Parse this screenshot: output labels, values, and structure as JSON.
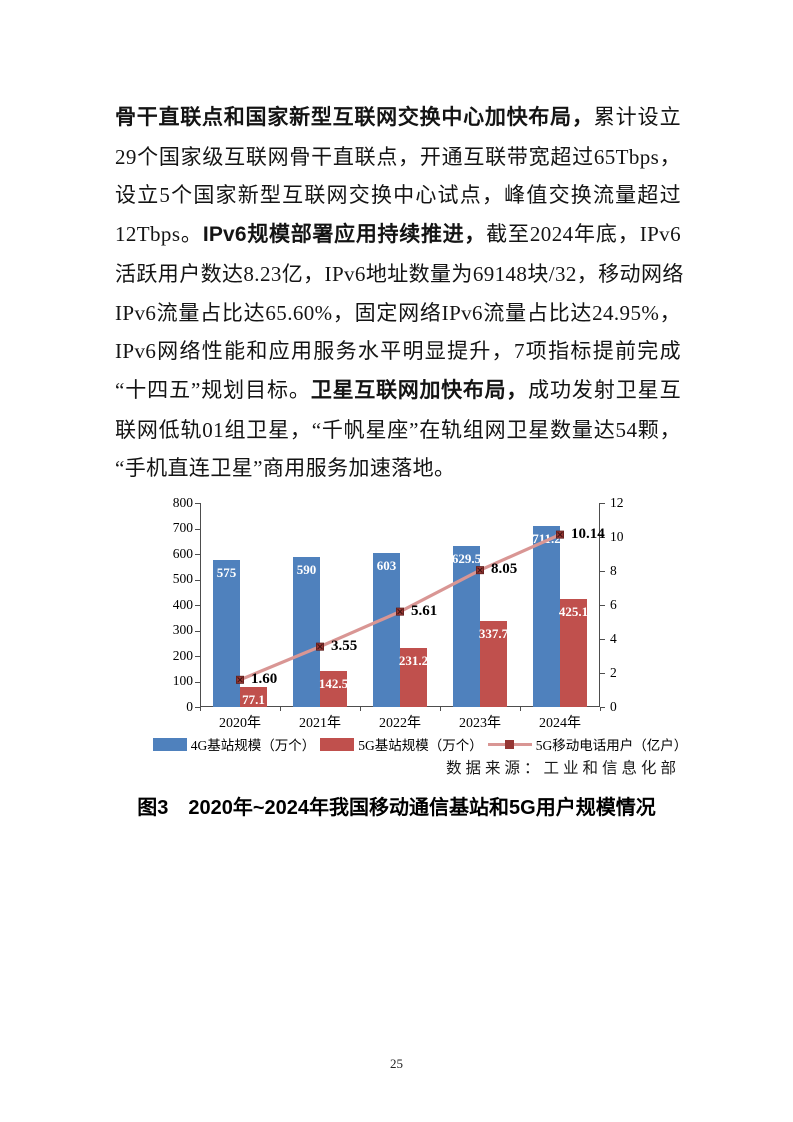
{
  "page": {
    "number": "25"
  },
  "paragraph": {
    "lines": [
      {
        "justify": true,
        "segments": [
          {
            "text": "骨干直联点和国家新型互联网交换中心加快布局，",
            "bold": true
          },
          {
            "text": "累计设立",
            "bold": false
          }
        ]
      },
      {
        "justify": true,
        "segments": [
          {
            "text": "29个国家级互联网骨干直联点，开通互联带宽超过65Tbps，",
            "bold": false
          }
        ]
      },
      {
        "justify": true,
        "segments": [
          {
            "text": "设立5个国家新型互联网交换中心试点，峰值交换流量超过",
            "bold": false
          }
        ]
      },
      {
        "justify": true,
        "segments": [
          {
            "text": "12Tbps。",
            "bold": false
          },
          {
            "text": "IPv6规模部署应用持续推进，",
            "bold": true
          },
          {
            "text": "截至2024年底，IPv6",
            "bold": false
          }
        ]
      },
      {
        "justify": true,
        "segments": [
          {
            "text": "活跃用户数达8.23亿，IPv6地址数量为69148块/32，移动网络",
            "bold": false
          }
        ]
      },
      {
        "justify": true,
        "segments": [
          {
            "text": "IPv6流量占比达65.60%，固定网络IPv6流量占比达24.95%，",
            "bold": false
          }
        ]
      },
      {
        "justify": true,
        "segments": [
          {
            "text": "IPv6网络性能和应用服务水平明显提升，7项指标提前完成",
            "bold": false
          }
        ]
      },
      {
        "justify": true,
        "segments": [
          {
            "text": "“十四五”规划目标。",
            "bold": false
          },
          {
            "text": "卫星互联网加快布局，",
            "bold": true
          },
          {
            "text": "成功发射卫星互",
            "bold": false
          }
        ]
      },
      {
        "justify": true,
        "segments": [
          {
            "text": "联网低轨01组卫星，“千帆星座”在轨组网卫星数量达54颗，",
            "bold": false
          }
        ]
      },
      {
        "justify": false,
        "segments": [
          {
            "text": "“手机直连卫星”商用服务加速落地。",
            "bold": false
          }
        ]
      }
    ]
  },
  "chart_data": {
    "type": "bar",
    "subtype": "grouped bars with secondary-axis line",
    "categories": [
      "2020年",
      "2021年",
      "2022年",
      "2023年",
      "2024年"
    ],
    "series": [
      {
        "name": "4G基站规模（万个）",
        "type": "bar",
        "color": "#4F81BD",
        "axis": "left",
        "values": [
          575,
          590,
          603,
          629.5,
          711.2
        ],
        "labels": [
          "575",
          "590",
          "603",
          "629.5",
          "711.2"
        ]
      },
      {
        "name": "5G基站规模（万个）",
        "type": "bar",
        "color": "#C0504D",
        "axis": "left",
        "values": [
          77.1,
          142.5,
          231.2,
          337.7,
          425.1
        ],
        "labels": [
          "77.1",
          "142.5",
          "231.2",
          "337.7",
          "425.1"
        ]
      },
      {
        "name": "5G移动电话用户（亿户）",
        "type": "line",
        "color": "#D99694",
        "marker_color": "#963634",
        "axis": "right",
        "values": [
          1.6,
          3.55,
          5.61,
          8.05,
          10.14
        ],
        "labels": [
          "1.60",
          "3.55",
          "5.61",
          "8.05",
          "10.14"
        ]
      }
    ],
    "left_axis": {
      "min": 0,
      "max": 800,
      "step": 100
    },
    "right_axis": {
      "min": 0,
      "max": 12,
      "step": 2
    },
    "grid": false,
    "legend_position": "bottom",
    "title": ""
  },
  "source_note": "数据来源：工业和信息化部",
  "caption": "图3　2020年~2024年我国移动通信基站和5G用户规模情况"
}
